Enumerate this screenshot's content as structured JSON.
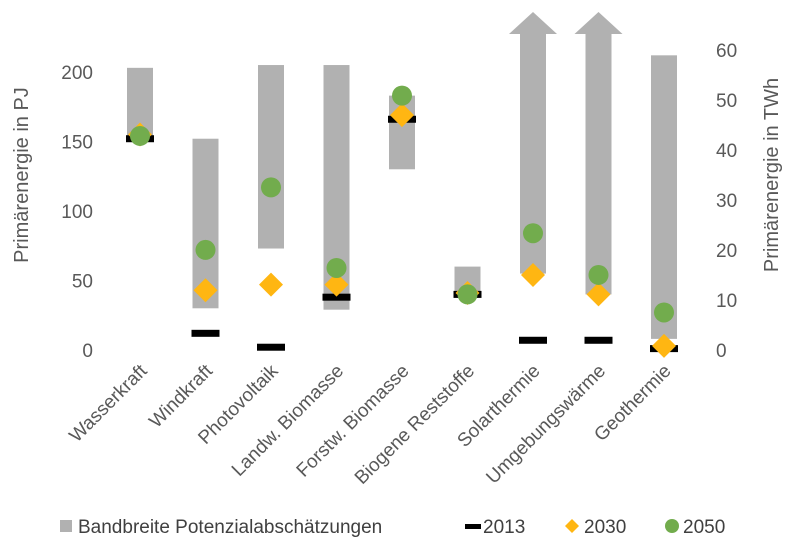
{
  "chart_data": {
    "type": "range-bar-with-markers",
    "categories": [
      "Wasserkraft",
      "Windkraft",
      "Photovoltaik",
      "Landw. Biomasse",
      "Forstw. Biomasse",
      "Biogene Reststoffe",
      "Solarthermie",
      "Umgebungswärme",
      "Geothermie"
    ],
    "ylabel": "Primärenergie in PJ",
    "y2label": "Primärenergie in TWh",
    "ylim": [
      0,
      200
    ],
    "yticks": [
      0,
      50,
      100,
      150,
      200
    ],
    "y2lim": [
      0,
      60
    ],
    "y2ticks": [
      0,
      10,
      20,
      30,
      40,
      50,
      60
    ],
    "y2_per_y": 0.2778,
    "series": [
      {
        "name": "Bandbreite Potenzialabschätzungen",
        "kind": "range",
        "color": "#b1b1b1",
        "low": [
          151,
          30,
          73,
          29,
          130,
          40,
          55,
          40,
          8
        ],
        "high": [
          203,
          152,
          205,
          205,
          183,
          60,
          230,
          230,
          212
        ],
        "open_ended": [
          false,
          false,
          false,
          false,
          false,
          false,
          true,
          true,
          false
        ]
      },
      {
        "name": "2013",
        "kind": "dash",
        "color": "#000000",
        "values": [
          152,
          12,
          2,
          38,
          166,
          40,
          7,
          7,
          1
        ]
      },
      {
        "name": "2030",
        "kind": "diamond",
        "color": "#ffb612",
        "values": [
          155,
          43,
          47,
          47,
          169,
          41,
          54,
          40,
          3
        ]
      },
      {
        "name": "2050",
        "kind": "circle",
        "color": "#72ac4d",
        "values": [
          154,
          72,
          117,
          59,
          183,
          40,
          84,
          54,
          27
        ]
      }
    ],
    "legend": "bottom"
  }
}
